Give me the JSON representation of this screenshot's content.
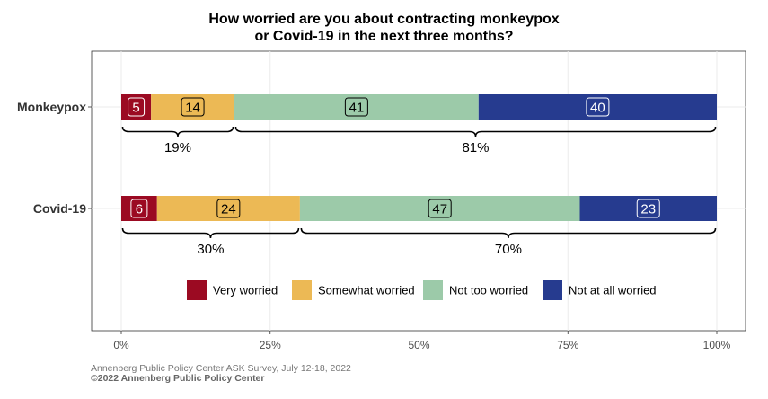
{
  "chart_data": {
    "type": "bar",
    "orientation": "horizontal",
    "stacked": true,
    "title_lines": [
      "How worried are you about contracting monkeypox",
      "or Covid-19 in the next three months?"
    ],
    "xlabel": "",
    "ylabel": "",
    "xlim": [
      0,
      100
    ],
    "x_ticks": [
      "0%",
      "25%",
      "50%",
      "75%",
      "100%"
    ],
    "grid": true,
    "legend_position": "bottom-inside",
    "categories": [
      "Monkeypox",
      "Covid-19"
    ],
    "series": [
      {
        "name": "Very worried",
        "color": "#9b0a22",
        "values": [
          5,
          6
        ],
        "labels": [
          "5",
          "6"
        ]
      },
      {
        "name": "Somewhat worried",
        "color": "#ecb955",
        "values": [
          14,
          24
        ],
        "labels": [
          "14",
          "24"
        ]
      },
      {
        "name": "Not too worried",
        "color": "#9ccaa9",
        "values": [
          41,
          47
        ],
        "labels": [
          "41",
          "47"
        ]
      },
      {
        "name": "Not at all worried",
        "color": "#263b8f",
        "values": [
          40,
          23
        ],
        "labels": [
          "40",
          "23"
        ]
      }
    ],
    "brackets": [
      {
        "category": "Monkeypox",
        "from": 0,
        "to": 19,
        "label": "19%"
      },
      {
        "category": "Monkeypox",
        "from": 19,
        "to": 100,
        "label": "81%"
      },
      {
        "category": "Covid-19",
        "from": 0,
        "to": 30,
        "label": "30%"
      },
      {
        "category": "Covid-19",
        "from": 30,
        "to": 100,
        "label": "70%"
      }
    ]
  },
  "footer": {
    "source": "Annenberg Public Policy Center ASK Survey, July 12-18, 2022",
    "copyright": "©2022 Annenberg Public Policy Center"
  }
}
